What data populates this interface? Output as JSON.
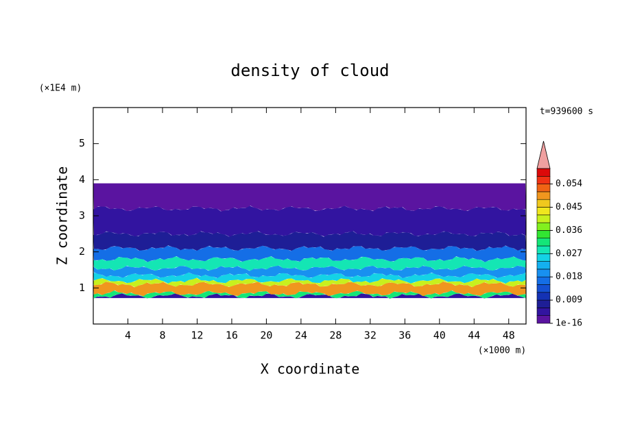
{
  "chart_data": {
    "type": "contour",
    "title": "density of cloud",
    "xlabel": "X coordinate",
    "ylabel": "Z coordinate",
    "xunit": "(×1000 m)",
    "yunit": "(×1E4 m)",
    "annotation": "t=939600 s",
    "xlim": [
      0,
      50
    ],
    "xticks": [
      4,
      8,
      12,
      16,
      20,
      24,
      28,
      32,
      36,
      40,
      44,
      48
    ],
    "ylim": [
      0,
      6
    ],
    "yticks": [
      1,
      2,
      3,
      4,
      5
    ],
    "field": {
      "z0": [
        0.72,
        0.78,
        0.85,
        1.1,
        1.2,
        1.35,
        1.55,
        1.8,
        2.1,
        2.5,
        3.2
      ],
      "z1": [
        0.78,
        0.85,
        1.1,
        1.2,
        1.35,
        1.55,
        1.8,
        2.1,
        2.5,
        3.2,
        3.9
      ],
      "values": [
        0.003,
        0.03,
        0.05,
        0.04,
        0.025,
        0.02,
        0.028,
        0.015,
        0.007,
        0.004,
        0.001
      ]
    },
    "levels": [
      1e-16,
      0.003,
      0.006,
      0.009,
      0.012,
      0.015,
      0.018,
      0.021,
      0.024,
      0.027,
      0.03,
      0.033,
      0.036,
      0.039,
      0.042,
      0.045,
      0.048,
      0.051,
      0.054,
      0.057,
      0.06
    ],
    "colors": [
      "#5a14a0",
      "#3214a0",
      "#1e1e96",
      "#1432b4",
      "#1450d2",
      "#146ee6",
      "#1890f0",
      "#14b0f0",
      "#14d2e6",
      "#14e6b4",
      "#14e678",
      "#32e632",
      "#82f01e",
      "#c8f01e",
      "#f0e61e",
      "#f0c81e",
      "#f0961e",
      "#f06414",
      "#f03214",
      "#dc0a0a"
    ],
    "extend_color": "#f0a0a0",
    "cticks": [
      1e-16,
      0.009,
      0.018,
      0.027,
      0.036,
      0.045,
      0.054
    ]
  }
}
